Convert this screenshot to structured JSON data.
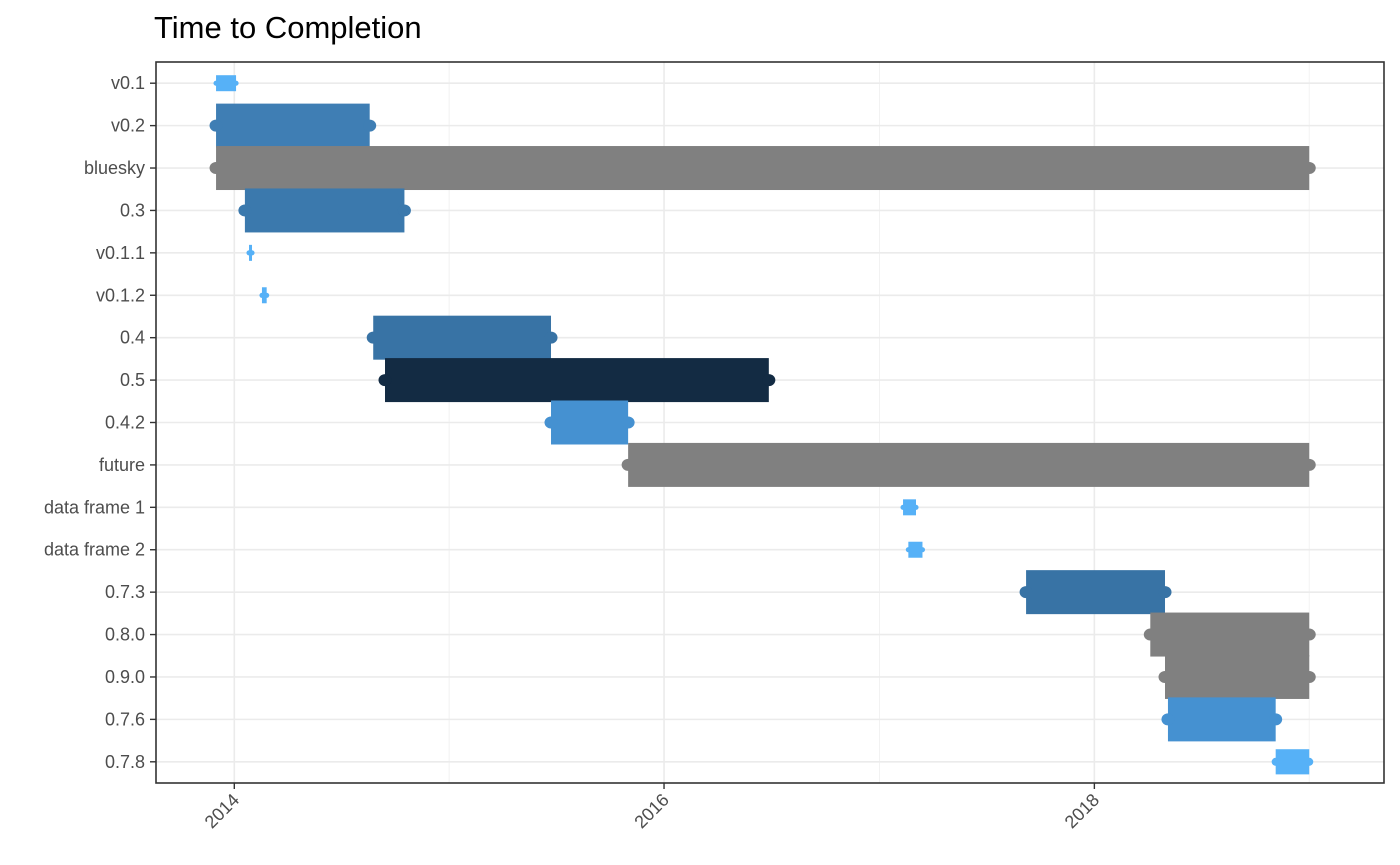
{
  "chart_data": {
    "type": "gantt",
    "title": "Time to Completion",
    "xlabel": "",
    "ylabel": "",
    "x_range": [
      "2013-08-21",
      "2019-05-08"
    ],
    "x_ticks": [
      {
        "date": "2014-01-01",
        "label": "2014"
      },
      {
        "date": "2016-01-01",
        "label": "2016"
      },
      {
        "date": "2018-01-01",
        "label": "2018"
      }
    ],
    "x_minor_ticks": [
      "2015-01-01",
      "2017-01-01",
      "2019-01-01"
    ],
    "grid": true,
    "tasks": [
      {
        "label": "v0.1",
        "start": "2013-12-01",
        "end": "2014-01-04",
        "color": "#56b1f7"
      },
      {
        "label": "v0.2",
        "start": "2013-12-01",
        "end": "2014-08-19",
        "color": "#3f7eb4"
      },
      {
        "label": "bluesky",
        "start": "2013-12-01",
        "end": "2019-01-01",
        "color": "#808080"
      },
      {
        "label": "0.3",
        "start": "2014-01-19",
        "end": "2014-10-17",
        "color": "#3b79ad"
      },
      {
        "label": "v0.1.1",
        "start": "2014-01-26",
        "end": "2014-01-30",
        "color": "#56b1f7"
      },
      {
        "label": "v0.1.2",
        "start": "2014-02-17",
        "end": "2014-02-25",
        "color": "#56b1f7"
      },
      {
        "label": "0.4",
        "start": "2014-08-25",
        "end": "2015-06-23",
        "color": "#3873a5"
      },
      {
        "label": "0.5",
        "start": "2014-09-14",
        "end": "2016-06-27",
        "color": "#132b43"
      },
      {
        "label": "0.4.2",
        "start": "2015-06-23",
        "end": "2015-11-01",
        "color": "#4591d1"
      },
      {
        "label": "future",
        "start": "2015-11-01",
        "end": "2019-01-01",
        "color": "#808080"
      },
      {
        "label": "data frame 1",
        "start": "2017-02-10",
        "end": "2017-03-04",
        "color": "#56b1f7"
      },
      {
        "label": "data frame 2",
        "start": "2017-02-19",
        "end": "2017-03-15",
        "color": "#56b1f7"
      },
      {
        "label": "0.7.3",
        "start": "2017-09-07",
        "end": "2018-05-01",
        "color": "#3873a5"
      },
      {
        "label": "0.8.0",
        "start": "2018-04-06",
        "end": "2019-01-01",
        "color": "#808080"
      },
      {
        "label": "0.9.0",
        "start": "2018-05-01",
        "end": "2019-01-01",
        "color": "#808080"
      },
      {
        "label": "0.7.6",
        "start": "2018-05-06",
        "end": "2018-11-05",
        "color": "#4591d1"
      },
      {
        "label": "0.7.8",
        "start": "2018-11-05",
        "end": "2019-01-01",
        "color": "#56b1f7"
      }
    ]
  }
}
